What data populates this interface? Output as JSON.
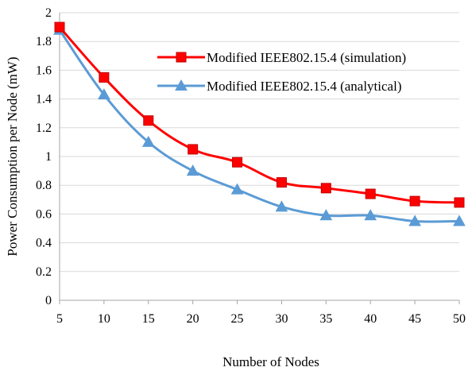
{
  "chart_data": {
    "type": "line",
    "title": "",
    "xlabel": "Number of Nodes",
    "ylabel": "Power Consumption per Node (mW)",
    "x": [
      5,
      10,
      15,
      20,
      25,
      30,
      35,
      40,
      45,
      50
    ],
    "xlim": [
      5,
      50
    ],
    "ylim": [
      0,
      2
    ],
    "yticks": [
      "0",
      "0.2",
      "0.4",
      "0.6",
      "0.8",
      "1",
      "1.2",
      "1.4",
      "1.6",
      "1.8",
      "2"
    ],
    "xticks": [
      "5",
      "10",
      "15",
      "20",
      "25",
      "30",
      "35",
      "40",
      "45",
      "50"
    ],
    "grid": "horizontal",
    "legend_position": "top-right",
    "series": [
      {
        "name": "Modified IEEE802.15.4 (simulation)",
        "marker": "square",
        "color": "#ff0000",
        "marker_fill": "#ff0000",
        "marker_edge": "#c00000",
        "values": [
          1.9,
          1.55,
          1.25,
          1.05,
          0.96,
          0.82,
          0.78,
          0.74,
          0.69,
          0.68
        ]
      },
      {
        "name": "Modified IEEE802.15.4 (analytical)",
        "marker": "triangle",
        "color": "#5b9bd5",
        "marker_fill": "#5b9bd5",
        "marker_edge": "#5b9bd5",
        "values": [
          1.88,
          1.43,
          1.1,
          0.9,
          0.77,
          0.65,
          0.59,
          0.59,
          0.55,
          0.55
        ]
      }
    ]
  }
}
